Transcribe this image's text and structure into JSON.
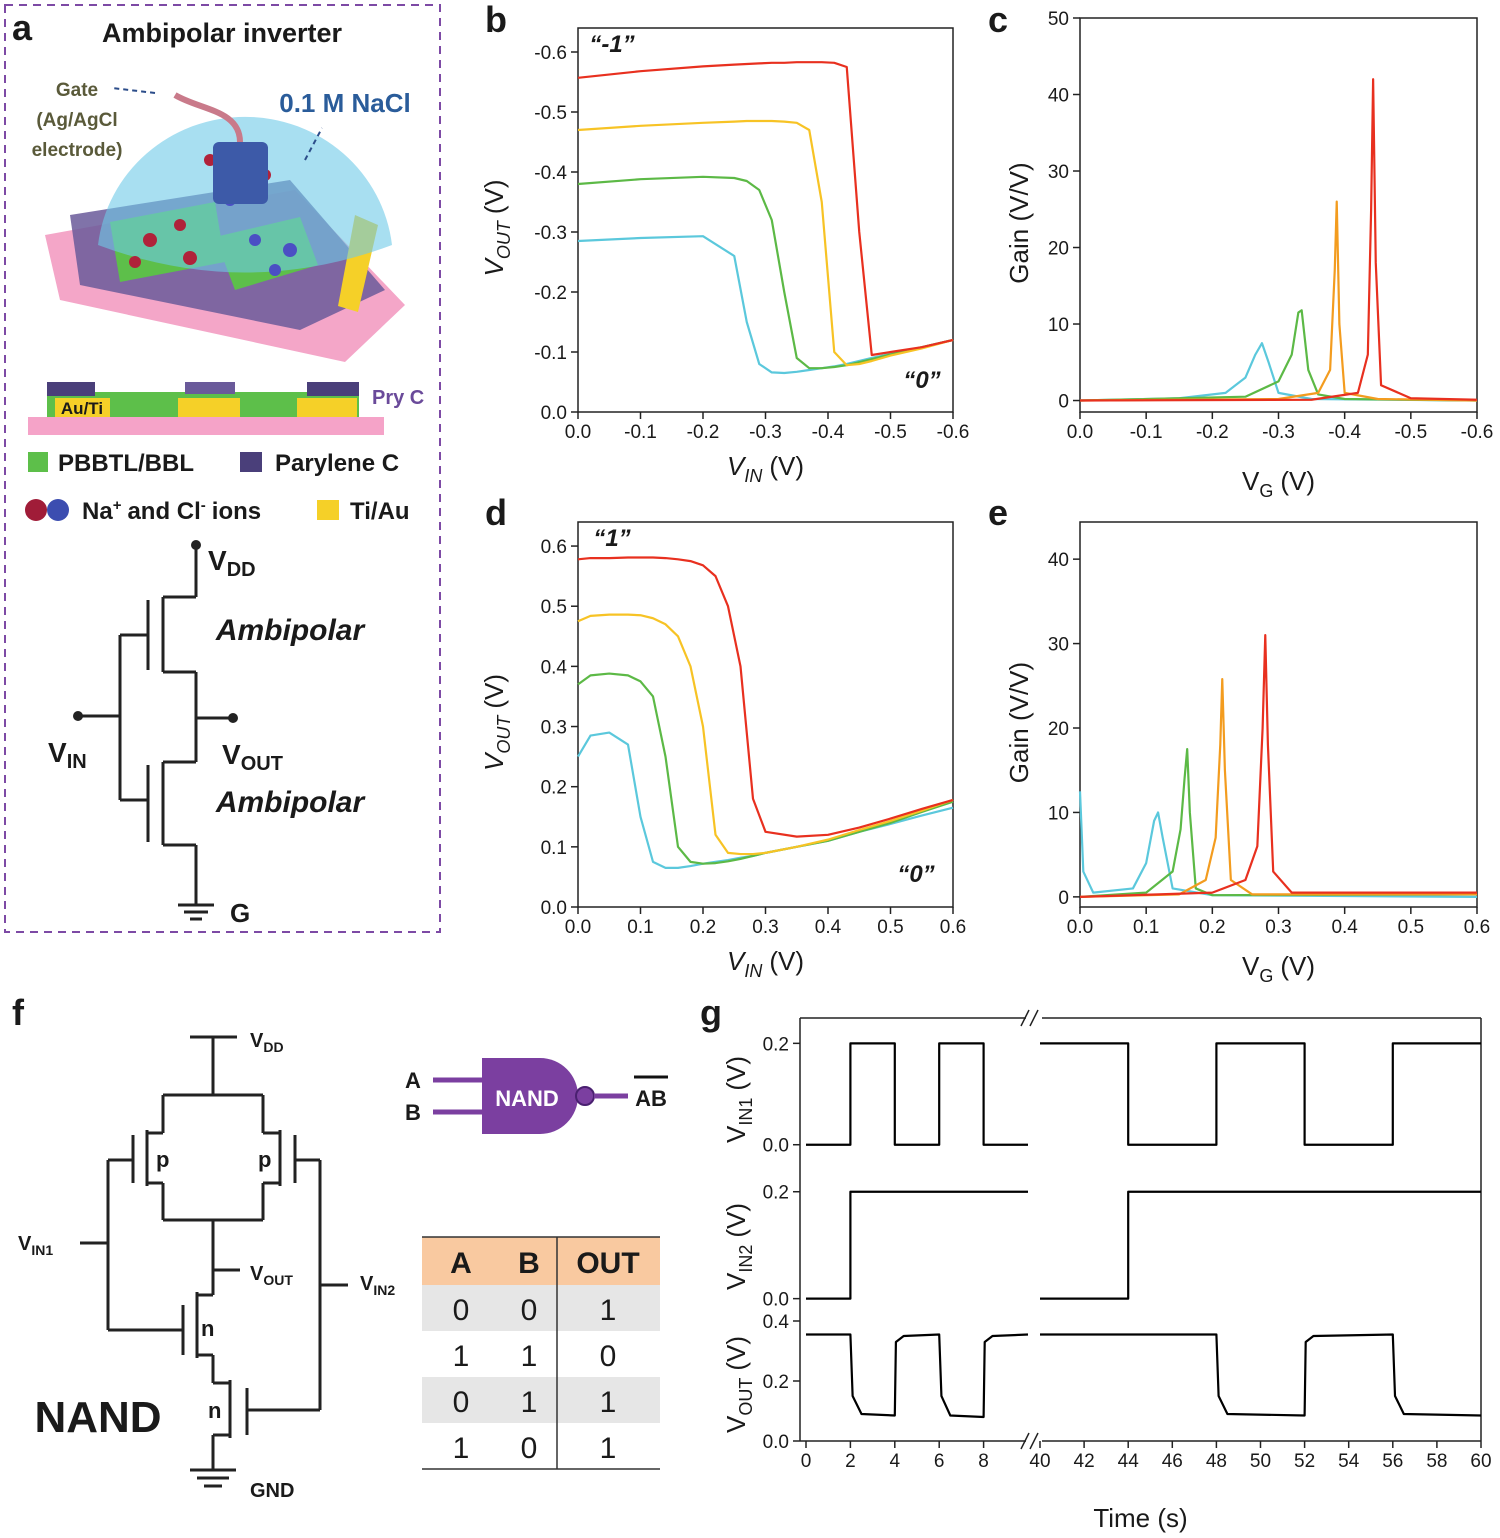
{
  "panel_labels": [
    "a",
    "b",
    "c",
    "d",
    "e",
    "f",
    "g"
  ],
  "diagram_a": {
    "title": "Ambipolar inverter",
    "gate": [
      "Gate",
      "(Ag/AgCl",
      "electrode)"
    ],
    "electrolyte": "0.1 M NaCl",
    "cross_section": {
      "contact": "Au/Ti",
      "parylene": "Pry C"
    },
    "legend": {
      "semiconductor": "PBBTL/BBL",
      "parylene": "Parylene C",
      "ions": [
        "Na",
        "+",
        "and Cl",
        "-",
        "ions"
      ],
      "metal": "Ti/Au"
    },
    "circuit": {
      "vdd": [
        "V",
        "DD"
      ],
      "top": "Ambipolar",
      "bottom": "Ambipolar",
      "vin": [
        "V",
        "IN"
      ],
      "vout": [
        "V",
        "OUT"
      ],
      "ground": "G"
    }
  },
  "chart_data": [
    {
      "type": "line",
      "xlabel": {
        "text": "V",
        "sub": "IN",
        "unit": "(V)"
      },
      "ylabel": {
        "text": "V",
        "sub": "OUT",
        "unit": "(V)"
      },
      "xlim": [
        0,
        -0.6
      ],
      "ylim": [
        0,
        -0.64
      ],
      "xticks": [
        {
          "value": 0,
          "label": "0.0"
        },
        -0.1,
        -0.2,
        -0.3,
        -0.4,
        -0.5,
        -0.6
      ],
      "yticks": [
        {
          "value": 0,
          "label": "0.0"
        },
        -0.1,
        -0.2,
        -0.3,
        -0.4,
        -0.5,
        -0.6
      ],
      "annotations": [
        "“-1”",
        "“0”"
      ],
      "x": [
        0,
        -0.1,
        -0.2,
        -0.25,
        -0.27,
        -0.29,
        -0.31,
        -0.33,
        -0.35,
        -0.37,
        -0.39,
        -0.41,
        -0.43,
        -0.45,
        -0.47,
        -0.5,
        -0.55,
        -0.6
      ],
      "series": [
        {
          "color": "#5bc8dc",
          "values": [
            -0.285,
            -0.29,
            -0.293,
            -0.26,
            -0.15,
            -0.08,
            -0.066,
            -0.065,
            -0.067,
            -0.07,
            -0.073,
            -0.076,
            -0.08,
            -0.085,
            -0.09,
            -0.097,
            -0.108,
            -0.12
          ]
        },
        {
          "color": "#5cb946",
          "values": [
            -0.38,
            -0.388,
            -0.392,
            -0.39,
            -0.385,
            -0.37,
            -0.32,
            -0.2,
            -0.09,
            -0.073,
            -0.073,
            -0.075,
            -0.078,
            -0.083,
            -0.088,
            -0.096,
            -0.108,
            -0.12
          ]
        },
        {
          "color": "#f7c325",
          "values": [
            -0.47,
            -0.477,
            -0.482,
            -0.484,
            -0.485,
            -0.485,
            -0.485,
            -0.484,
            -0.482,
            -0.47,
            -0.35,
            -0.1,
            -0.078,
            -0.08,
            -0.085,
            -0.094,
            -0.106,
            -0.12
          ]
        },
        {
          "color": "#e8301f",
          "values": [
            -0.557,
            -0.568,
            -0.576,
            -0.579,
            -0.58,
            -0.581,
            -0.582,
            -0.582,
            -0.583,
            -0.583,
            -0.583,
            -0.582,
            -0.575,
            -0.3,
            -0.095,
            -0.1,
            -0.108,
            -0.12
          ]
        }
      ]
    },
    {
      "type": "line",
      "xlabel": {
        "text": "V",
        "sub": "G",
        "unit": "(V)"
      },
      "ylabel": {
        "text": "Gain (V/V)"
      },
      "xlim": [
        0,
        -0.6
      ],
      "ylim": [
        -1.5,
        50
      ],
      "xticks": [
        {
          "value": 0,
          "label": "0.0"
        },
        -0.1,
        -0.2,
        -0.3,
        -0.4,
        -0.5,
        -0.6
      ],
      "yticks": [
        0,
        10,
        20,
        30,
        40,
        50
      ],
      "series": [
        {
          "color": "#5bc8dc",
          "x": [
            0,
            -0.15,
            -0.22,
            -0.25,
            -0.265,
            -0.275,
            -0.285,
            -0.3,
            -0.35,
            -0.6
          ],
          "values": [
            0,
            0.3,
            1,
            3,
            6,
            7.5,
            5,
            1,
            0.2,
            0
          ]
        },
        {
          "color": "#5cb946",
          "x": [
            0,
            -0.25,
            -0.3,
            -0.32,
            -0.33,
            -0.335,
            -0.345,
            -0.36,
            -0.4,
            -0.6
          ],
          "values": [
            0,
            0.5,
            2.5,
            6,
            11.5,
            11.8,
            4,
            0.8,
            0.2,
            0
          ]
        },
        {
          "color": "#f39c1f",
          "x": [
            0,
            -0.3,
            -0.36,
            -0.378,
            -0.385,
            -0.388,
            -0.392,
            -0.4,
            -0.45,
            -0.6
          ],
          "values": [
            0,
            0.2,
            1,
            4,
            17,
            26,
            10,
            1,
            0.2,
            0
          ]
        },
        {
          "color": "#e8301f",
          "x": [
            0,
            -0.35,
            -0.42,
            -0.435,
            -0.44,
            -0.443,
            -0.447,
            -0.455,
            -0.5,
            -0.6
          ],
          "values": [
            0,
            0.1,
            1,
            6,
            25,
            42,
            18,
            2,
            0.3,
            0.1
          ]
        }
      ]
    },
    {
      "type": "line",
      "xlabel": {
        "text": "V",
        "sub": "IN",
        "unit": "(V)"
      },
      "ylabel": {
        "text": "V",
        "sub": "OUT",
        "unit": "(V)"
      },
      "xlim": [
        0,
        0.6
      ],
      "ylim": [
        0,
        0.64
      ],
      "xticks": [
        {
          "value": 0,
          "label": "0.0"
        },
        0.1,
        0.2,
        0.3,
        0.4,
        0.5,
        0.6
      ],
      "yticks": [
        {
          "value": 0,
          "label": "0.0"
        },
        0.1,
        0.2,
        0.3,
        0.4,
        0.5,
        0.6
      ],
      "annotations": [
        "“1”",
        "“0”"
      ],
      "x": [
        0,
        0.02,
        0.05,
        0.08,
        0.1,
        0.12,
        0.14,
        0.16,
        0.18,
        0.2,
        0.22,
        0.24,
        0.26,
        0.28,
        0.3,
        0.35,
        0.4,
        0.45,
        0.5,
        0.55,
        0.6
      ],
      "series": [
        {
          "color": "#5bc8dc",
          "values": [
            0.25,
            0.285,
            0.29,
            0.27,
            0.15,
            0.075,
            0.065,
            0.065,
            0.068,
            0.072,
            0.075,
            0.078,
            0.082,
            0.085,
            0.09,
            0.1,
            0.11,
            0.125,
            0.138,
            0.152,
            0.165
          ]
        },
        {
          "color": "#5cb946",
          "values": [
            0.37,
            0.385,
            0.388,
            0.385,
            0.375,
            0.35,
            0.25,
            0.1,
            0.075,
            0.072,
            0.073,
            0.076,
            0.08,
            0.085,
            0.09,
            0.1,
            0.11,
            0.125,
            0.14,
            0.158,
            0.175
          ]
        },
        {
          "color": "#f7c325",
          "values": [
            0.475,
            0.484,
            0.486,
            0.486,
            0.485,
            0.48,
            0.47,
            0.45,
            0.4,
            0.3,
            0.12,
            0.09,
            0.088,
            0.088,
            0.09,
            0.1,
            0.112,
            0.128,
            0.143,
            0.16,
            0.178
          ]
        },
        {
          "color": "#e8301f",
          "values": [
            0.578,
            0.58,
            0.58,
            0.581,
            0.581,
            0.581,
            0.58,
            0.578,
            0.575,
            0.568,
            0.55,
            0.5,
            0.4,
            0.18,
            0.125,
            0.117,
            0.12,
            0.132,
            0.147,
            0.163,
            0.178
          ]
        }
      ]
    },
    {
      "type": "line",
      "xlabel": {
        "text": "V",
        "sub": "G",
        "unit": "(V)"
      },
      "ylabel": {
        "text": "Gain (V/V)"
      },
      "xlim": [
        0,
        0.6
      ],
      "ylim": [
        -1.2,
        44.4
      ],
      "xticks": [
        {
          "value": 0,
          "label": "0.0"
        },
        0.1,
        0.2,
        0.3,
        0.4,
        0.5,
        0.6
      ],
      "yticks": [
        0,
        10,
        20,
        30,
        40
      ],
      "series": [
        {
          "color": "#5bc8dc",
          "x": [
            0,
            0.005,
            0.02,
            0.08,
            0.1,
            0.112,
            0.118,
            0.125,
            0.14,
            0.2,
            0.6
          ],
          "values": [
            12.5,
            3,
            0.5,
            1,
            4,
            9,
            10,
            7,
            1,
            0.2,
            0
          ]
        },
        {
          "color": "#5cb946",
          "x": [
            0,
            0.1,
            0.14,
            0.152,
            0.158,
            0.162,
            0.166,
            0.175,
            0.2,
            0.6
          ],
          "values": [
            0,
            0.5,
            3,
            8,
            14,
            17.5,
            10,
            1,
            0.2,
            0.3
          ]
        },
        {
          "color": "#f39c1f",
          "x": [
            0,
            0.15,
            0.19,
            0.205,
            0.212,
            0.215,
            0.219,
            0.228,
            0.26,
            0.6
          ],
          "values": [
            0,
            0.3,
            2,
            7,
            18,
            25.8,
            15,
            2,
            0.3,
            0.3
          ]
        },
        {
          "color": "#e8301f",
          "x": [
            0,
            0.2,
            0.25,
            0.268,
            0.276,
            0.28,
            0.284,
            0.292,
            0.32,
            0.6
          ],
          "values": [
            0,
            0.5,
            2,
            6,
            20,
            31,
            18,
            3,
            0.5,
            0.5
          ]
        }
      ]
    },
    {
      "type": "line",
      "ylabel": {
        "text": "V",
        "sub": "IN1",
        "unit": "(V)"
      },
      "xlim": [
        0,
        60
      ],
      "xbreak": [
        10,
        40
      ],
      "ylim": [
        -0.04,
        0.25
      ],
      "yticks": [
        {
          "value": 0,
          "label": "0.0"
        },
        0.2
      ],
      "x": [
        0,
        2,
        2,
        4,
        4,
        6,
        6,
        8,
        8,
        10,
        25,
        40,
        44,
        44,
        48,
        48,
        52,
        52,
        56,
        56,
        60
      ],
      "series": [
        {
          "color": "#000000",
          "values": [
            0,
            0,
            0.2,
            0.2,
            0,
            0,
            0.2,
            0.2,
            0,
            0,
            null,
            0.2,
            0.2,
            0,
            0,
            0.2,
            0.2,
            0,
            0,
            0.2,
            0.2
          ]
        }
      ]
    },
    {
      "type": "line",
      "ylabel": {
        "text": "V",
        "sub": "IN2",
        "unit": "(V)"
      },
      "xlim": [
        0,
        60
      ],
      "xbreak": [
        10,
        40
      ],
      "ylim": [
        -0.025,
        0.25
      ],
      "yticks": [
        {
          "value": 0,
          "label": "0.0"
        },
        0.2
      ],
      "x": [
        0,
        2,
        2,
        10,
        25,
        40,
        44,
        44,
        60
      ],
      "series": [
        {
          "color": "#000000",
          "values": [
            0,
            0,
            0.2,
            0.2,
            null,
            0,
            0,
            0.2,
            0.2
          ]
        }
      ]
    },
    {
      "type": "line",
      "ylabel": {
        "text": "V",
        "sub": "OUT",
        "unit": "(V)"
      },
      "xlabel": {
        "text": "Time (s)"
      },
      "xlim": [
        0,
        60
      ],
      "xbreak": [
        10,
        40
      ],
      "ylim": [
        0,
        0.43
      ],
      "yticks": [
        {
          "value": 0,
          "label": "0.0"
        },
        0.2,
        0.4
      ],
      "xticks": [
        0,
        2,
        4,
        6,
        8,
        40,
        42,
        44,
        46,
        48,
        50,
        52,
        54,
        56,
        58,
        60
      ],
      "x": [
        0,
        2,
        2.1,
        2.5,
        4,
        4.05,
        4.4,
        6,
        6.1,
        6.5,
        8,
        8.05,
        8.4,
        10,
        25,
        40,
        48,
        48.1,
        48.5,
        52,
        52.05,
        52.4,
        56,
        56.1,
        56.5,
        60
      ],
      "series": [
        {
          "color": "#000000",
          "values": [
            0.355,
            0.355,
            0.15,
            0.09,
            0.085,
            0.33,
            0.35,
            0.355,
            0.15,
            0.085,
            0.08,
            0.33,
            0.35,
            0.355,
            null,
            0.355,
            0.355,
            0.15,
            0.09,
            0.085,
            0.33,
            0.35,
            0.355,
            0.15,
            0.09,
            0.085
          ]
        }
      ]
    }
  ],
  "nand": {
    "circuit": {
      "vdd": [
        "V",
        "DD"
      ],
      "vin1": [
        "V",
        "IN1"
      ],
      "vin2": [
        "V",
        "IN2"
      ],
      "vout": [
        "V",
        "OUT"
      ],
      "transistors": [
        "p",
        "p",
        "n",
        "n"
      ],
      "name": "NAND",
      "ground": "GND"
    },
    "gate": {
      "inputs": [
        "A",
        "B"
      ],
      "label": "NAND",
      "output": "AB"
    },
    "table": {
      "header": [
        "A",
        "B",
        "OUT"
      ],
      "rows": [
        [
          0,
          0,
          1
        ],
        [
          1,
          1,
          0
        ],
        [
          0,
          1,
          1
        ],
        [
          1,
          0,
          1
        ]
      ]
    }
  }
}
